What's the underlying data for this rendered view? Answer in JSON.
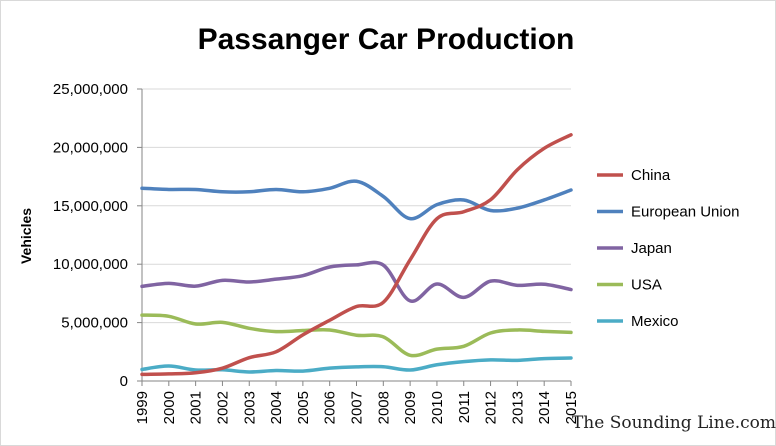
{
  "chart_data": {
    "type": "line",
    "title": "Passanger Car Production",
    "xlabel": "",
    "ylabel": "Vehicles",
    "x": [
      "1999",
      "2000",
      "2001",
      "2002",
      "2003",
      "2004",
      "2005",
      "2006",
      "2007",
      "2008",
      "2009",
      "2010",
      "2011",
      "2012",
      "2013",
      "2014",
      "2015"
    ],
    "ylim": [
      0,
      25000000
    ],
    "yticks": [
      "0",
      "5,000,000",
      "10,000,000",
      "15,000,000",
      "20,000,000",
      "25,000,000"
    ],
    "grid": "horizontal",
    "legend": "right",
    "series": [
      {
        "name": "China",
        "color": "#c0504d",
        "values": [
          565000,
          605000,
          704000,
          1100000,
          2000000,
          2500000,
          3950000,
          5200000,
          6380000,
          6740000,
          10380000,
          13900000,
          14490000,
          15520000,
          18090000,
          19920000,
          21080000
        ]
      },
      {
        "name": "European Union",
        "color": "#4f81bd",
        "values": [
          16500000,
          16400000,
          16400000,
          16200000,
          16200000,
          16400000,
          16200000,
          16500000,
          17100000,
          15800000,
          13900000,
          15100000,
          15500000,
          14600000,
          14800000,
          15500000,
          16350000
        ]
      },
      {
        "name": "Japan",
        "color": "#8064a2",
        "values": [
          8100000,
          8360000,
          8120000,
          8620000,
          8480000,
          8720000,
          9020000,
          9760000,
          9940000,
          9920000,
          6860000,
          8300000,
          7160000,
          8550000,
          8190000,
          8280000,
          7830000
        ]
      },
      {
        "name": "USA",
        "color": "#9bbb59",
        "values": [
          5640000,
          5540000,
          4880000,
          5020000,
          4510000,
          4230000,
          4320000,
          4370000,
          3920000,
          3780000,
          2200000,
          2730000,
          2970000,
          4110000,
          4370000,
          4250000,
          4160000
        ]
      },
      {
        "name": "Mexico",
        "color": "#4bacc6",
        "values": [
          990000,
          1280000,
          940000,
          960000,
          775000,
          900000,
          850000,
          1100000,
          1210000,
          1220000,
          940000,
          1390000,
          1660000,
          1810000,
          1770000,
          1920000,
          1970000
        ]
      }
    ]
  },
  "credit": "The Sounding Line.com"
}
